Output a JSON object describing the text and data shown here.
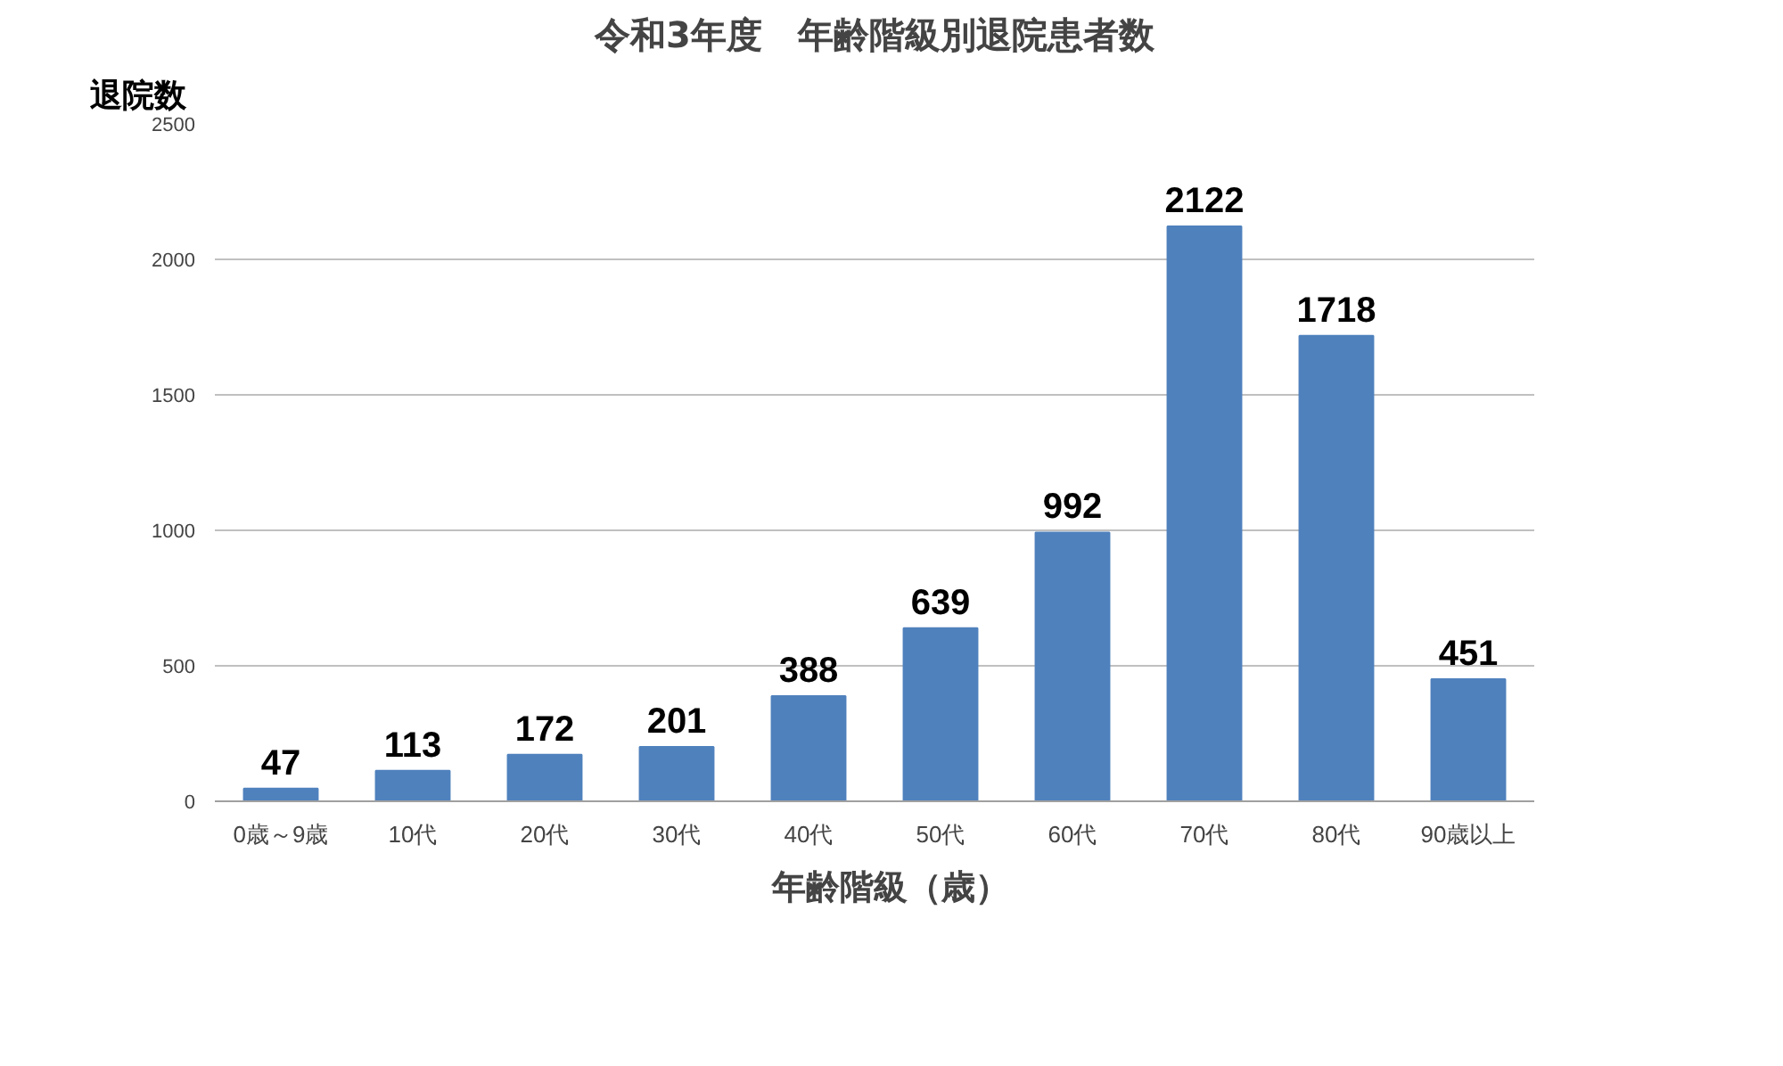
{
  "chart_data": {
    "type": "bar",
    "title": "令和3年度　年齢階級別退院患者数",
    "ylabel": "退院数",
    "categories": [
      "0歳～9歳",
      "10代",
      "20代",
      "30代",
      "40代",
      "50代",
      "60代",
      "70代",
      "80代",
      "90歳以上"
    ],
    "series": [
      {
        "name": "年齢階級（歳）",
        "color": "#4f81bd",
        "values": [
          47,
          113,
          172,
          201,
          388,
          639,
          992,
          2122,
          1718,
          451
        ]
      }
    ],
    "ylim": [
      0,
      2500
    ],
    "yticks": [
      0,
      500,
      1000,
      1500,
      2000,
      2500
    ],
    "grid": "y",
    "legend": "bottom",
    "data_labels": true
  }
}
